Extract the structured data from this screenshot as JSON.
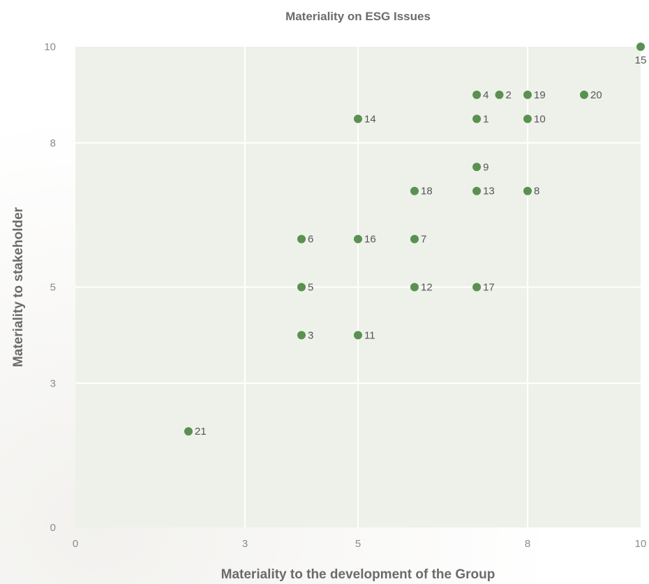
{
  "chart_data": {
    "type": "scatter",
    "title": "Materiality on ESG Issues",
    "xlabel": "Materiality  to the development of the Group",
    "ylabel": "Materiality to stakeholder",
    "xlim": [
      0,
      10
    ],
    "ylim": [
      0,
      10
    ],
    "x_ticks": [
      "0",
      "3",
      "5",
      "8",
      "10"
    ],
    "y_ticks": [
      "0",
      "3",
      "5",
      "8",
      "10"
    ],
    "grid": true,
    "marker_color": "#5a9150",
    "plot_background": "#eef1ea",
    "points": [
      {
        "label": "1",
        "x": 7.1,
        "y": 8.5
      },
      {
        "label": "2",
        "x": 7.5,
        "y": 9.0
      },
      {
        "label": "3",
        "x": 4.0,
        "y": 4.0
      },
      {
        "label": "4",
        "x": 7.1,
        "y": 9.0
      },
      {
        "label": "5",
        "x": 4.0,
        "y": 5.0
      },
      {
        "label": "6",
        "x": 4.0,
        "y": 6.0
      },
      {
        "label": "7",
        "x": 6.0,
        "y": 6.0
      },
      {
        "label": "8",
        "x": 8.0,
        "y": 7.0
      },
      {
        "label": "9",
        "x": 7.1,
        "y": 7.5
      },
      {
        "label": "10",
        "x": 8.0,
        "y": 8.5
      },
      {
        "label": "11",
        "x": 5.0,
        "y": 4.0
      },
      {
        "label": "12",
        "x": 6.0,
        "y": 5.0
      },
      {
        "label": "13",
        "x": 7.1,
        "y": 7.0
      },
      {
        "label": "14",
        "x": 5.0,
        "y": 8.5
      },
      {
        "label": "15",
        "x": 10.0,
        "y": 10.0
      },
      {
        "label": "16",
        "x": 5.0,
        "y": 6.0
      },
      {
        "label": "17",
        "x": 7.1,
        "y": 5.0
      },
      {
        "label": "18",
        "x": 6.0,
        "y": 7.0
      },
      {
        "label": "19",
        "x": 8.0,
        "y": 9.0
      },
      {
        "label": "20",
        "x": 9.0,
        "y": 9.0
      },
      {
        "label": "21",
        "x": 2.0,
        "y": 2.0
      }
    ]
  }
}
